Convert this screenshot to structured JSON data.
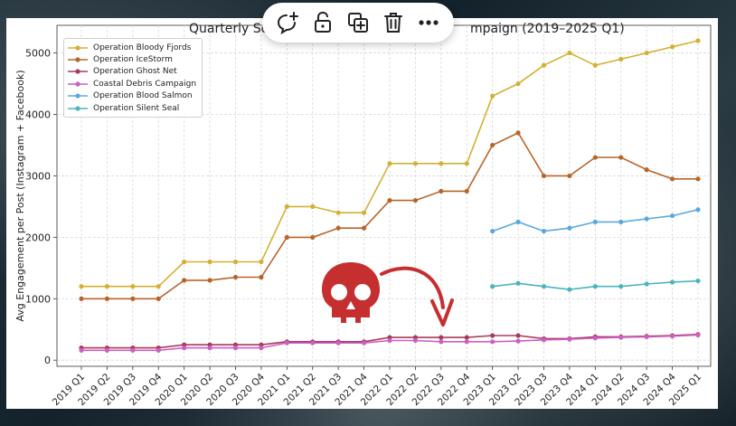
{
  "toolbar": {
    "buttons": [
      {
        "name": "add-comment-button",
        "icon": "comment-plus-icon"
      },
      {
        "name": "unlock-button",
        "icon": "unlock-icon"
      },
      {
        "name": "duplicate-button",
        "icon": "duplicate-icon"
      },
      {
        "name": "delete-button",
        "icon": "trash-icon"
      },
      {
        "name": "more-button",
        "icon": "more-horizontal-icon"
      }
    ]
  },
  "overlay": {
    "skull_icon": "skull-icon",
    "arrow_icon": "curved-arrow-icon",
    "skull_color": "#c62f2f"
  },
  "chart_data": {
    "type": "line",
    "title_left": "Quarterly So",
    "title_right": "mpaign (2019–2025 Q1)",
    "ylabel": "Avg Engagement per Post (Instagram + Facebook)",
    "xlabel": "",
    "ylim": [
      -100,
      5450
    ],
    "yticks": [
      0,
      1000,
      2000,
      3000,
      4000,
      5000
    ],
    "grid": true,
    "legend_position": "top-left",
    "categories": [
      "2019 Q1",
      "2019 Q2",
      "2019 Q3",
      "2019 Q4",
      "2020 Q1",
      "2020 Q2",
      "2020 Q3",
      "2020 Q4",
      "2021 Q1",
      "2021 Q2",
      "2021 Q3",
      "2021 Q4",
      "2022 Q1",
      "2022 Q2",
      "2022 Q3",
      "2022 Q4",
      "2023 Q1",
      "2023 Q2",
      "2023 Q3",
      "2023 Q4",
      "2024 Q1",
      "2024 Q2",
      "2024 Q3",
      "2024 Q4",
      "2025 Q1"
    ],
    "series": [
      {
        "name": "Operation Bloody Fjords",
        "color": "#d4b035",
        "values": [
          1200,
          1200,
          1200,
          1200,
          1600,
          1600,
          1600,
          1600,
          2500,
          2500,
          2400,
          2400,
          3200,
          3200,
          3200,
          3200,
          4300,
          4500,
          4800,
          5000,
          4800,
          4900,
          5000,
          5100,
          5200
        ]
      },
      {
        "name": "Operation IceStorm",
        "color": "#b8652a",
        "values": [
          1000,
          1000,
          1000,
          1000,
          1300,
          1300,
          1350,
          1350,
          2000,
          2000,
          2150,
          2150,
          2600,
          2600,
          2750,
          2750,
          3500,
          3700,
          3000,
          3000,
          3300,
          3300,
          3100,
          2950,
          2950
        ]
      },
      {
        "name": "Operation Ghost Net",
        "color": "#a83a5a",
        "values": [
          200,
          200,
          200,
          200,
          250,
          250,
          250,
          250,
          300,
          300,
          300,
          300,
          370,
          370,
          370,
          370,
          400,
          400,
          350,
          350,
          380,
          380,
          390,
          400,
          420
        ]
      },
      {
        "name": "Coastal Debris Campaign",
        "color": "#cc5fc4",
        "values": [
          160,
          160,
          160,
          160,
          200,
          200,
          200,
          200,
          280,
          280,
          280,
          280,
          320,
          320,
          300,
          300,
          300,
          310,
          330,
          340,
          360,
          370,
          380,
          390,
          410
        ]
      },
      {
        "name": "Operation Blood Salmon",
        "color": "#5aa9dc",
        "values": [
          null,
          null,
          null,
          null,
          null,
          null,
          null,
          null,
          null,
          null,
          null,
          null,
          null,
          null,
          null,
          null,
          2100,
          2250,
          2100,
          2150,
          2250,
          2250,
          2300,
          2350,
          2450
        ]
      },
      {
        "name": "Operation Silent Seal",
        "color": "#4bb4bd",
        "values": [
          null,
          null,
          null,
          null,
          null,
          null,
          null,
          null,
          null,
          null,
          null,
          null,
          null,
          null,
          null,
          null,
          1200,
          1250,
          1200,
          1150,
          1200,
          1200,
          1240,
          1270,
          1290
        ]
      }
    ]
  }
}
